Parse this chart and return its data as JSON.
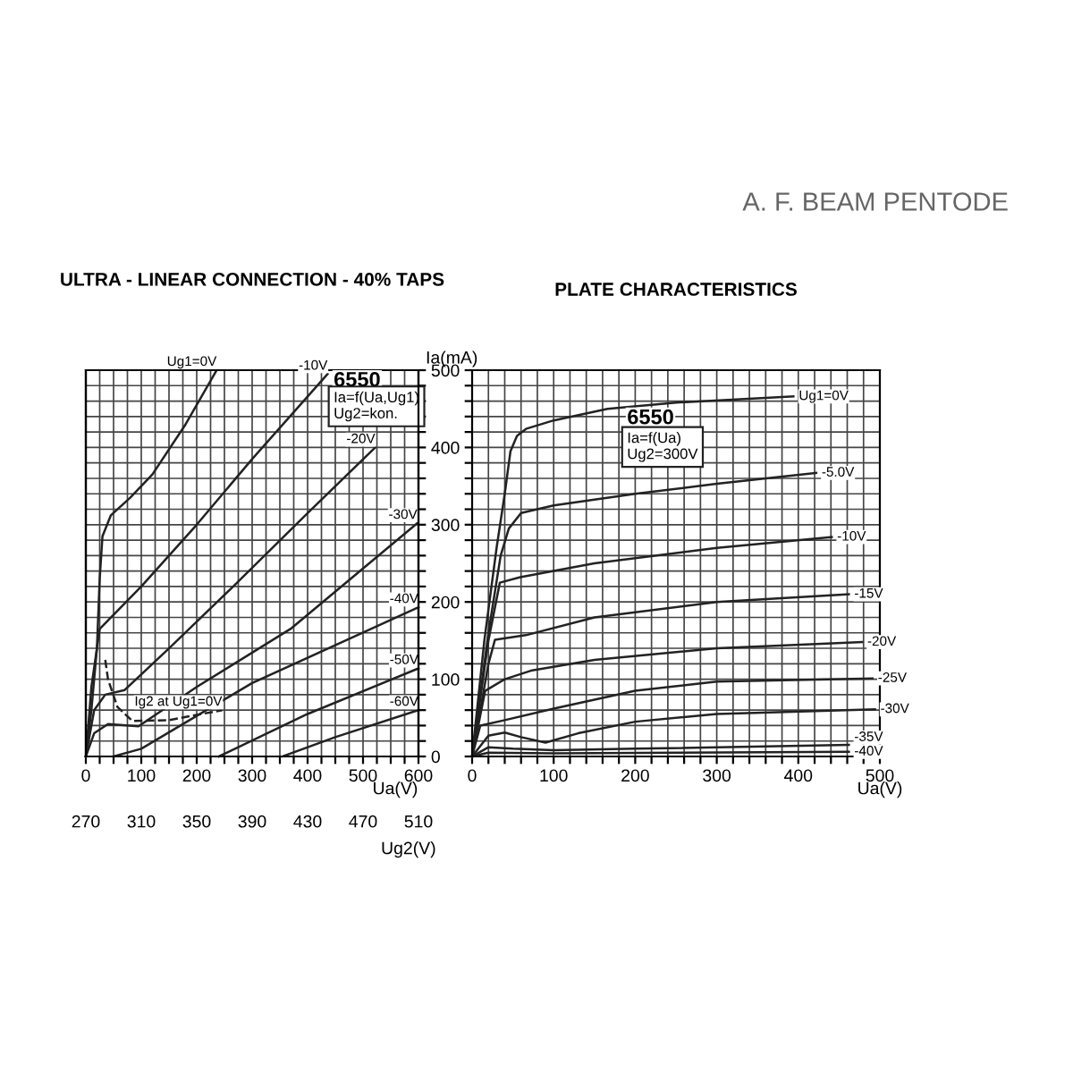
{
  "chart_data": [
    {
      "type": "other",
      "title": "A. F. BEAM PENTODE"
    },
    {
      "type": "line",
      "title": "ULTRA - LINEAR CONNECTION - 40% TAPS",
      "xlabel": "Ua(V)",
      "ylabel": "Ia(mA)",
      "x2label": "Ug2(V)",
      "annotations": [
        "6550",
        "Ia=f(Ua,Ug1)",
        "Ug2=kon."
      ],
      "xlim": [
        0,
        600
      ],
      "ylim": [
        0,
        500
      ],
      "x2lim": [
        270,
        510
      ],
      "x2ticks": [
        270,
        310,
        350,
        390,
        430,
        470,
        510
      ],
      "xticks": [
        0,
        {
          "value": 25,
          "label": null
        },
        {
          "value": 50,
          "label": null
        },
        {
          "value": 75,
          "label": null
        },
        100,
        {
          "value": 125,
          "label": null
        },
        {
          "value": 150,
          "label": null
        },
        {
          "value": 175,
          "label": null
        },
        200,
        {
          "value": 225,
          "label": null
        },
        {
          "value": 250,
          "label": null
        },
        {
          "value": 275,
          "label": null
        },
        300,
        {
          "value": 325,
          "label": null
        },
        {
          "value": 350,
          "label": null
        },
        {
          "value": 375,
          "label": null
        },
        400,
        {
          "value": 425,
          "label": null
        },
        {
          "value": 450,
          "label": null
        },
        {
          "value": 475,
          "label": null
        },
        500,
        {
          "value": 525,
          "label": null
        },
        {
          "value": 550,
          "label": null
        },
        {
          "value": 575,
          "label": null
        },
        600
      ],
      "yticks": [
        0,
        {
          "value": 20,
          "label": null
        },
        {
          "value": 40,
          "label": null
        },
        {
          "value": 60,
          "label": null
        },
        {
          "value": 80,
          "label": null
        },
        100,
        {
          "value": 120,
          "label": null
        },
        {
          "value": 140,
          "label": null
        },
        {
          "value": 160,
          "label": null
        },
        {
          "value": 180,
          "label": null
        },
        200,
        {
          "value": 220,
          "label": null
        },
        {
          "value": 240,
          "label": null
        },
        {
          "value": 260,
          "label": null
        },
        {
          "value": 280,
          "label": null
        },
        300,
        {
          "value": 320,
          "label": null
        },
        {
          "value": 340,
          "label": null
        },
        {
          "value": 360,
          "label": null
        },
        {
          "value": 380,
          "label": null
        },
        400,
        {
          "value": 420,
          "label": null
        },
        {
          "value": 440,
          "label": null
        },
        {
          "value": 460,
          "label": null
        },
        {
          "value": 480,
          "label": null
        },
        500
      ],
      "grid": true,
      "legend": false,
      "marker": "none",
      "line_style": "solid",
      "series": [
        {
          "name": "Ug1=0V",
          "color": "#222222",
          "x": [
            0,
            10,
            20,
            25,
            30,
            45,
            80,
            120,
            180,
            236
          ],
          "values": [
            0,
            60,
            140,
            230,
            285,
            312,
            335,
            365,
            430,
            500
          ]
        },
        {
          "name": "-10V",
          "color": "#222222",
          "x": [
            0,
            10,
            25,
            100,
            200,
            300,
            436
          ],
          "values": [
            0,
            90,
            165,
            220,
            300,
            385,
            495
          ]
        },
        {
          "name": "-20V",
          "color": "#222222",
          "x": [
            0,
            15,
            35,
            70,
            150,
            263,
            400,
            522
          ],
          "values": [
            0,
            60,
            80,
            86,
            140,
            218,
            315,
            400
          ]
        },
        {
          "name": "-30V",
          "color": "#222222",
          "x": [
            0,
            15,
            40,
            95,
            200,
            371,
            598
          ],
          "values": [
            0,
            30,
            42,
            39,
            90,
            166,
            302
          ]
        },
        {
          "name": "-40V",
          "color": "#222222",
          "x": [
            50,
            100,
            300,
            600
          ],
          "values": [
            0,
            10,
            95,
            193
          ]
        },
        {
          "name": "-50V",
          "color": "#222222",
          "x": [
            240,
            400,
            600
          ],
          "values": [
            0,
            55,
            114
          ]
        },
        {
          "name": "-60V",
          "color": "#222222",
          "x": [
            355,
            450,
            600
          ],
          "values": [
            0,
            25,
            60
          ]
        },
        {
          "name": "Ig2 at Ug1=0V",
          "color": "#222222",
          "line_style": "dashed",
          "x": [
            35,
            40,
            57,
            84,
            150,
            246
          ],
          "values": [
            125,
            100,
            64,
            46,
            47,
            60
          ]
        }
      ]
    },
    {
      "type": "line",
      "title": "PLATE CHARACTERISTICS",
      "xlabel": "Ua(V)",
      "annotations": [
        "6550",
        "Ia=f(Ua)",
        "Ug2=300V"
      ],
      "xlim": [
        0,
        500
      ],
      "ylim": [
        0,
        500
      ],
      "tick_labels": "x",
      "xticks": [
        0,
        {
          "value": 20,
          "label": null
        },
        {
          "value": 40,
          "label": null
        },
        {
          "value": 60,
          "label": null
        },
        {
          "value": 80,
          "label": null
        },
        100,
        {
          "value": 120,
          "label": null
        },
        {
          "value": 140,
          "label": null
        },
        {
          "value": 160,
          "label": null
        },
        {
          "value": 180,
          "label": null
        },
        200,
        {
          "value": 220,
          "label": null
        },
        {
          "value": 240,
          "label": null
        },
        {
          "value": 260,
          "label": null
        },
        {
          "value": 280,
          "label": null
        },
        300,
        {
          "value": 320,
          "label": null
        },
        {
          "value": 340,
          "label": null
        },
        {
          "value": 360,
          "label": null
        },
        {
          "value": 380,
          "label": null
        },
        400,
        {
          "value": 420,
          "label": null
        },
        {
          "value": 440,
          "label": null
        },
        {
          "value": 460,
          "label": null
        },
        {
          "value": 480,
          "label": null
        },
        500
      ],
      "yticks": [
        0,
        {
          "value": 20,
          "label": null
        },
        {
          "value": 40,
          "label": null
        },
        {
          "value": 60,
          "label": null
        },
        {
          "value": 80,
          "label": null
        },
        100,
        {
          "value": 120,
          "label": null
        },
        {
          "value": 140,
          "label": null
        },
        {
          "value": 160,
          "label": null
        },
        {
          "value": 180,
          "label": null
        },
        200,
        {
          "value": 220,
          "label": null
        },
        {
          "value": 240,
          "label": null
        },
        {
          "value": 260,
          "label": null
        },
        {
          "value": 280,
          "label": null
        },
        300,
        {
          "value": 320,
          "label": null
        },
        {
          "value": 340,
          "label": null
        },
        {
          "value": 360,
          "label": null
        },
        {
          "value": 380,
          "label": null
        },
        400,
        {
          "value": 420,
          "label": null
        },
        {
          "value": 440,
          "label": null
        },
        {
          "value": 460,
          "label": null
        },
        {
          "value": 480,
          "label": null
        },
        500
      ],
      "grid": true,
      "legend": false,
      "marker": "none",
      "line_style": "solid",
      "series": [
        {
          "name": "Ug1=0V",
          "color": "#222222",
          "x": [
            0,
            15,
            30,
            40,
            47,
            55,
            66,
            100,
            166,
            250,
            394
          ],
          "values": [
            0,
            150,
            270,
            340,
            395,
            415,
            424,
            435,
            450,
            458,
            466
          ]
        },
        {
          "name": "-5.0V",
          "color": "#222222",
          "x": [
            0,
            20,
            35,
            45,
            60,
            100,
            200,
            300,
            422
          ],
          "values": [
            0,
            160,
            260,
            295,
            315,
            325,
            340,
            353,
            367
          ]
        },
        {
          "name": "-10V",
          "color": "#222222",
          "x": [
            0,
            20,
            34,
            59,
            150,
            300,
            441
          ],
          "values": [
            0,
            150,
            225,
            232,
            250,
            270,
            284
          ]
        },
        {
          "name": "-15V",
          "color": "#222222",
          "x": [
            0,
            20,
            28,
            66,
            150,
            300,
            462
          ],
          "values": [
            0,
            120,
            151,
            157,
            180,
            200,
            210
          ]
        },
        {
          "name": "-20V",
          "color": "#222222",
          "x": [
            0,
            16,
            40,
            72,
            150,
            300,
            478
          ],
          "values": [
            0,
            85,
            100,
            111,
            125,
            140,
            148
          ]
        },
        {
          "name": "-25V",
          "color": "#222222",
          "x": [
            0,
            10,
            40,
            100,
            200,
            300,
            491
          ],
          "values": [
            0,
            40,
            47,
            62,
            85,
            97,
            101
          ]
        },
        {
          "name": "-30V",
          "color": "#222222",
          "x": [
            0,
            20,
            40,
            60,
            90,
            130,
            200,
            300,
            494
          ],
          "values": [
            0,
            27,
            31,
            25,
            18,
            30,
            45,
            55,
            61
          ]
        },
        {
          "name": "-35V",
          "color": "#222222",
          "x": [
            0,
            20,
            50,
            100,
            200,
            462
          ],
          "values": [
            0,
            12,
            10,
            8,
            10,
            15
          ]
        },
        {
          "name": "-40V",
          "color": "#222222",
          "x": [
            0,
            20,
            100,
            462
          ],
          "values": [
            0,
            5,
            4,
            6
          ]
        }
      ]
    }
  ]
}
